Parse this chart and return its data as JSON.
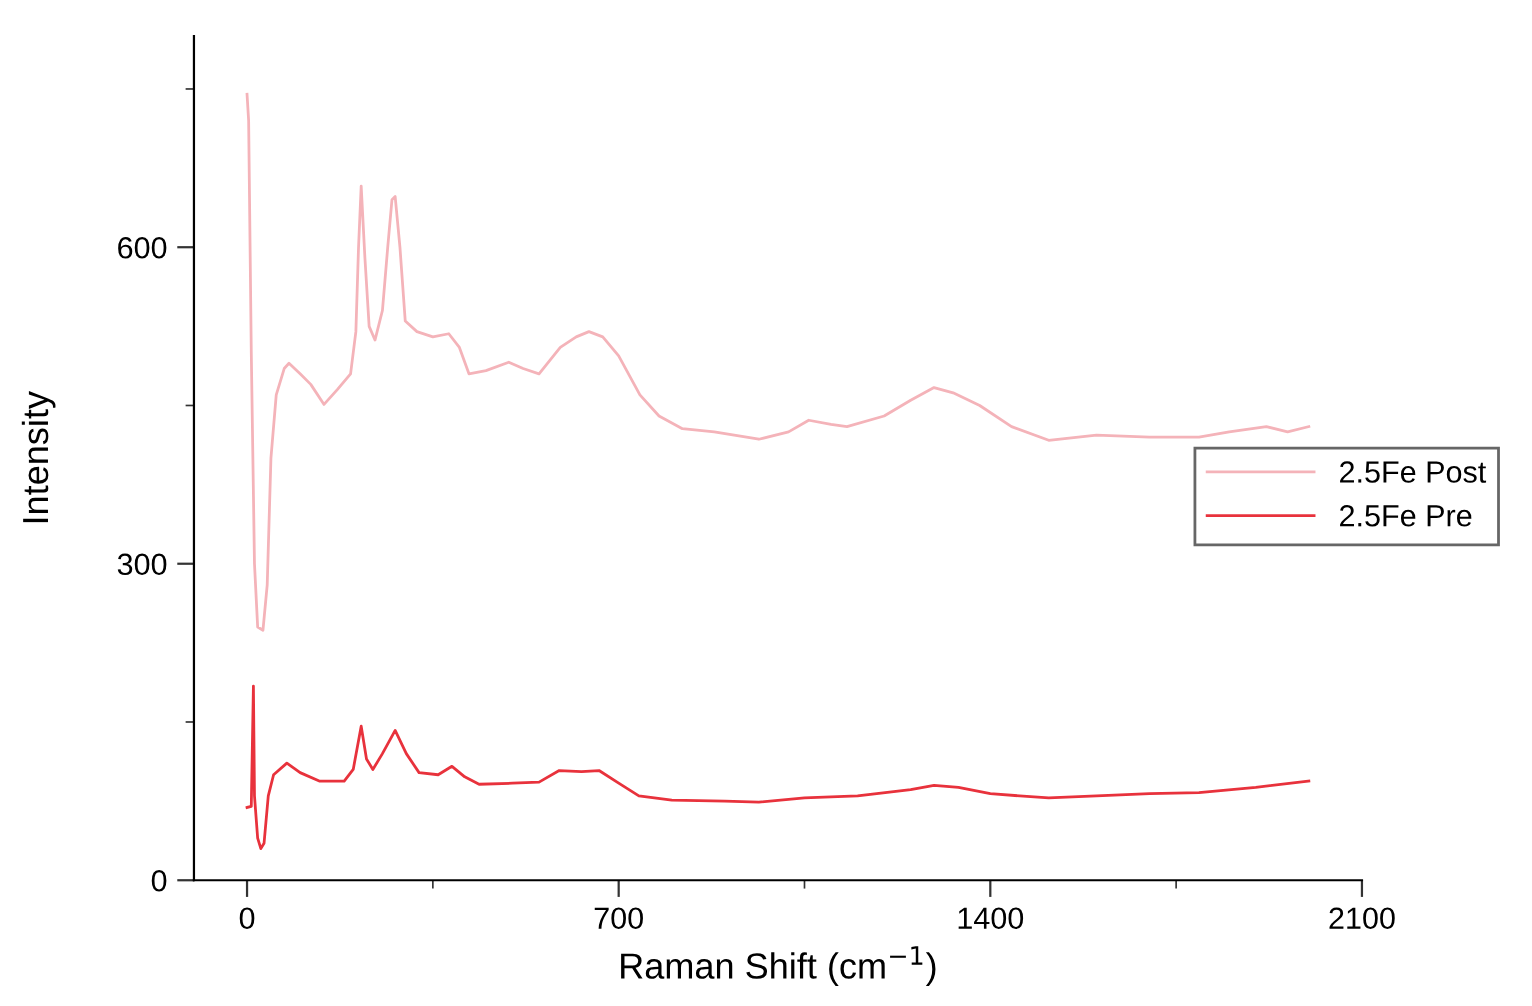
{
  "chart_data": {
    "type": "line",
    "xlabel": "Raman Shift (cm$^{−1}$)",
    "ylabel": "Intensity",
    "xlim": [
      -100,
      2100
    ],
    "ylim": [
      0,
      800
    ],
    "xticks": [
      0,
      {
        "value": 350,
        "label": null
      },
      700,
      {
        "value": 1050,
        "label": null
      },
      1400,
      {
        "value": 1750,
        "label": null
      },
      2100
    ],
    "yticks": [
      0,
      {
        "value": 150,
        "label": null
      },
      300,
      {
        "value": 450,
        "label": null
      },
      600,
      {
        "value": 750,
        "label": null
      }
    ],
    "grid": false,
    "legend": "right",
    "marker": "none",
    "line_style": "solid",
    "series": [
      {
        "name": "2.5Fe Post",
        "color": "#f4b3b9",
        "x": [
          0,
          3,
          8,
          14,
          20,
          30,
          38,
          45,
          55,
          70,
          79,
          100,
          120,
          145,
          170,
          195,
          205,
          210,
          215,
          222,
          230,
          241,
          255,
          265,
          273,
          279,
          288,
          298,
          320,
          350,
          380,
          400,
          418,
          450,
          493,
          520,
          550,
          590,
          620,
          644,
          670,
          700,
          740,
          776,
          820,
          880,
          964,
          1020,
          1058,
          1100,
          1130,
          1200,
          1250,
          1294,
          1330,
          1380,
          1440,
          1510,
          1600,
          1700,
          1793,
          1850,
          1920,
          1960,
          2000
        ],
        "values": [
          745,
          720,
          500,
          300,
          240,
          237,
          280,
          400,
          460,
          485,
          490,
          480,
          470,
          451,
          465,
          480,
          520,
          600,
          658,
          590,
          525,
          512,
          540,
          600,
          645,
          648,
          600,
          530,
          520,
          515,
          518,
          505,
          480,
          483,
          491,
          485,
          480,
          505,
          515,
          520,
          515,
          497,
          460,
          440,
          428,
          425,
          418,
          425,
          436,
          432,
          430,
          440,
          455,
          467,
          462,
          450,
          430,
          417,
          422,
          420,
          420,
          425,
          430,
          425,
          430
        ]
      },
      {
        "name": "2.5Fe Pre",
        "color": "#e8323c",
        "x": [
          0,
          8,
          12,
          14,
          20,
          26,
          32,
          40,
          50,
          75,
          100,
          136,
          183,
          200,
          215,
          225,
          237,
          255,
          279,
          300,
          324,
          360,
          386,
          410,
          437,
          500,
          550,
          588,
          630,
          663,
          700,
          738,
          800,
          900,
          964,
          1050,
          1150,
          1250,
          1294,
          1340,
          1400,
          1510,
          1600,
          1700,
          1793,
          1900,
          2000
        ],
        "values": [
          69,
          70,
          184,
          80,
          40,
          30,
          35,
          80,
          100,
          111,
          102,
          94,
          94,
          105,
          146,
          115,
          105,
          120,
          142,
          120,
          102,
          100,
          108,
          98,
          91,
          92,
          93,
          104,
          103,
          104,
          92,
          80,
          76,
          75,
          74,
          78,
          80,
          86,
          90,
          88,
          82,
          78,
          80,
          82,
          83,
          88,
          94
        ]
      }
    ]
  }
}
